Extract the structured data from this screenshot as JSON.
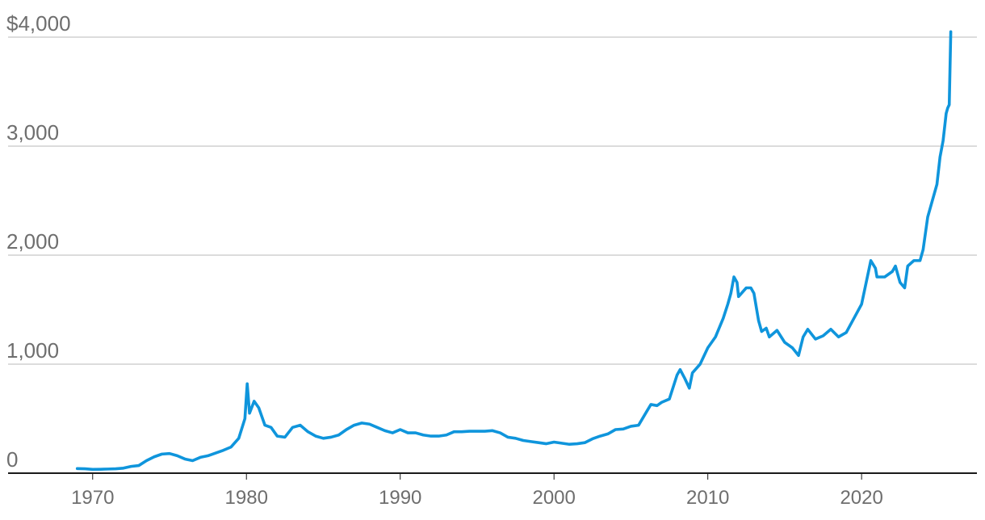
{
  "chart_data": {
    "type": "line",
    "title": "",
    "xlabel": "",
    "ylabel": "",
    "xlim": [
      1964.5,
      2027.5
    ],
    "ylim": [
      0,
      4000
    ],
    "grid": true,
    "legend": "none",
    "color": "#0f95dc",
    "y_ticks": [
      {
        "value": 0,
        "label": "0"
      },
      {
        "value": 1000,
        "label": "1,000"
      },
      {
        "value": 2000,
        "label": "2,000"
      },
      {
        "value": 3000,
        "label": "3,000"
      },
      {
        "value": 4000,
        "label": "$4,000"
      }
    ],
    "x_ticks": [
      {
        "value": 1970,
        "label": "1970"
      },
      {
        "value": 1980,
        "label": "1980"
      },
      {
        "value": 1990,
        "label": "1990"
      },
      {
        "value": 2000,
        "label": "2000"
      },
      {
        "value": 2010,
        "label": "2010"
      },
      {
        "value": 2020,
        "label": "2020"
      }
    ],
    "series": [
      {
        "x": [
          1969.0,
          1969.5,
          1970.0,
          1970.5,
          1971.0,
          1971.5,
          1972.0,
          1972.5,
          1973.0,
          1973.5,
          1974.0,
          1974.5,
          1975.0,
          1975.5,
          1976.0,
          1976.5,
          1977.0,
          1977.5,
          1978.0,
          1978.5,
          1979.0,
          1979.5,
          1979.9,
          1980.05,
          1980.2,
          1980.5,
          1980.8,
          1981.2,
          1981.6,
          1982.0,
          1982.5,
          1983.0,
          1983.5,
          1984.0,
          1984.5,
          1985.0,
          1985.5,
          1986.0,
          1986.5,
          1987.0,
          1987.5,
          1988.0,
          1988.5,
          1989.0,
          1989.5,
          1990.0,
          1990.5,
          1991.0,
          1991.5,
          1992.0,
          1992.5,
          1993.0,
          1993.5,
          1994.0,
          1994.5,
          1995.0,
          1995.5,
          1996.0,
          1996.5,
          1997.0,
          1997.5,
          1998.0,
          1998.5,
          1999.0,
          1999.5,
          2000.0,
          2000.5,
          2001.0,
          2001.5,
          2002.0,
          2002.5,
          2003.0,
          2003.5,
          2004.0,
          2004.5,
          2005.0,
          2005.5,
          2006.0,
          2006.3,
          2006.7,
          2007.0,
          2007.5,
          2008.0,
          2008.2,
          2008.5,
          2008.8,
          2009.0,
          2009.5,
          2010.0,
          2010.5,
          2011.0,
          2011.3,
          2011.5,
          2011.7,
          2011.9,
          2012.0,
          2012.5,
          2012.8,
          2013.0,
          2013.3,
          2013.5,
          2013.8,
          2014.0,
          2014.5,
          2015.0,
          2015.5,
          2015.9,
          2016.2,
          2016.5,
          2017.0,
          2017.5,
          2018.0,
          2018.5,
          2019.0,
          2019.5,
          2020.0,
          2020.3,
          2020.6,
          2020.9,
          2021.0,
          2021.5,
          2022.0,
          2022.2,
          2022.5,
          2022.8,
          2023.0,
          2023.4,
          2023.8,
          2024.0,
          2024.3,
          2024.6,
          2024.9,
          2025.1,
          2025.3,
          2025.5,
          2025.6,
          2025.7,
          2025.8
        ],
        "values": [
          42,
          40,
          35,
          36,
          38,
          40,
          46,
          62,
          70,
          115,
          150,
          175,
          180,
          160,
          130,
          115,
          145,
          160,
          185,
          210,
          240,
          320,
          500,
          820,
          550,
          660,
          600,
          440,
          420,
          340,
          330,
          420,
          440,
          380,
          340,
          320,
          330,
          350,
          400,
          440,
          460,
          450,
          420,
          390,
          370,
          400,
          370,
          370,
          350,
          340,
          340,
          350,
          380,
          380,
          385,
          385,
          385,
          390,
          370,
          330,
          320,
          300,
          290,
          280,
          270,
          285,
          275,
          265,
          270,
          280,
          315,
          340,
          360,
          400,
          405,
          430,
          440,
          560,
          630,
          620,
          650,
          680,
          900,
          950,
          870,
          780,
          920,
          1000,
          1150,
          1250,
          1420,
          1550,
          1650,
          1800,
          1750,
          1620,
          1700,
          1700,
          1650,
          1400,
          1300,
          1330,
          1250,
          1310,
          1200,
          1150,
          1080,
          1250,
          1320,
          1230,
          1260,
          1320,
          1250,
          1290,
          1420,
          1550,
          1750,
          1950,
          1880,
          1800,
          1800,
          1850,
          1900,
          1750,
          1700,
          1900,
          1950,
          1950,
          2050,
          2350,
          2500,
          2650,
          2900,
          3050,
          3300,
          3350,
          3380,
          4050
        ]
      }
    ]
  }
}
